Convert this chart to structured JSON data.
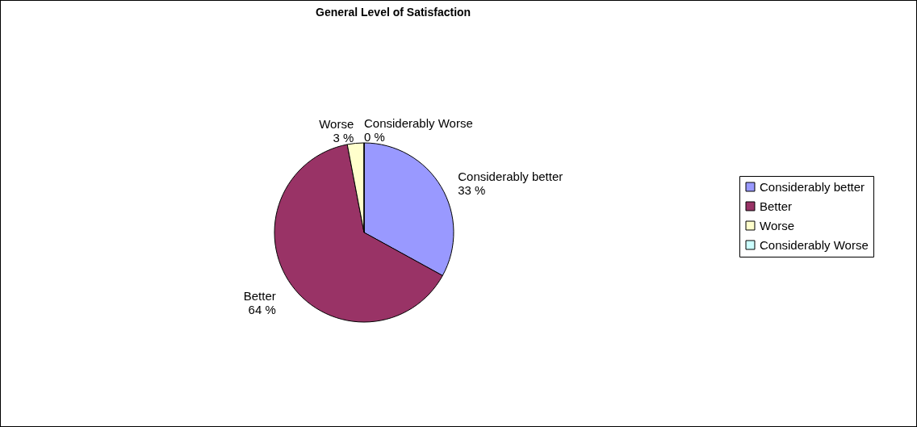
{
  "chart_data": {
    "type": "pie",
    "title": "General Level of Satisfaction",
    "categories": [
      "Considerably better",
      "Better",
      "Worse",
      "Considerably Worse"
    ],
    "values": [
      33,
      64,
      3,
      0
    ],
    "colors": [
      "#9999ff",
      "#993366",
      "#ffffcc",
      "#ccffff"
    ],
    "value_labels": [
      "33 %",
      "64 %",
      "3 %",
      "0 %"
    ],
    "legend": "right"
  }
}
